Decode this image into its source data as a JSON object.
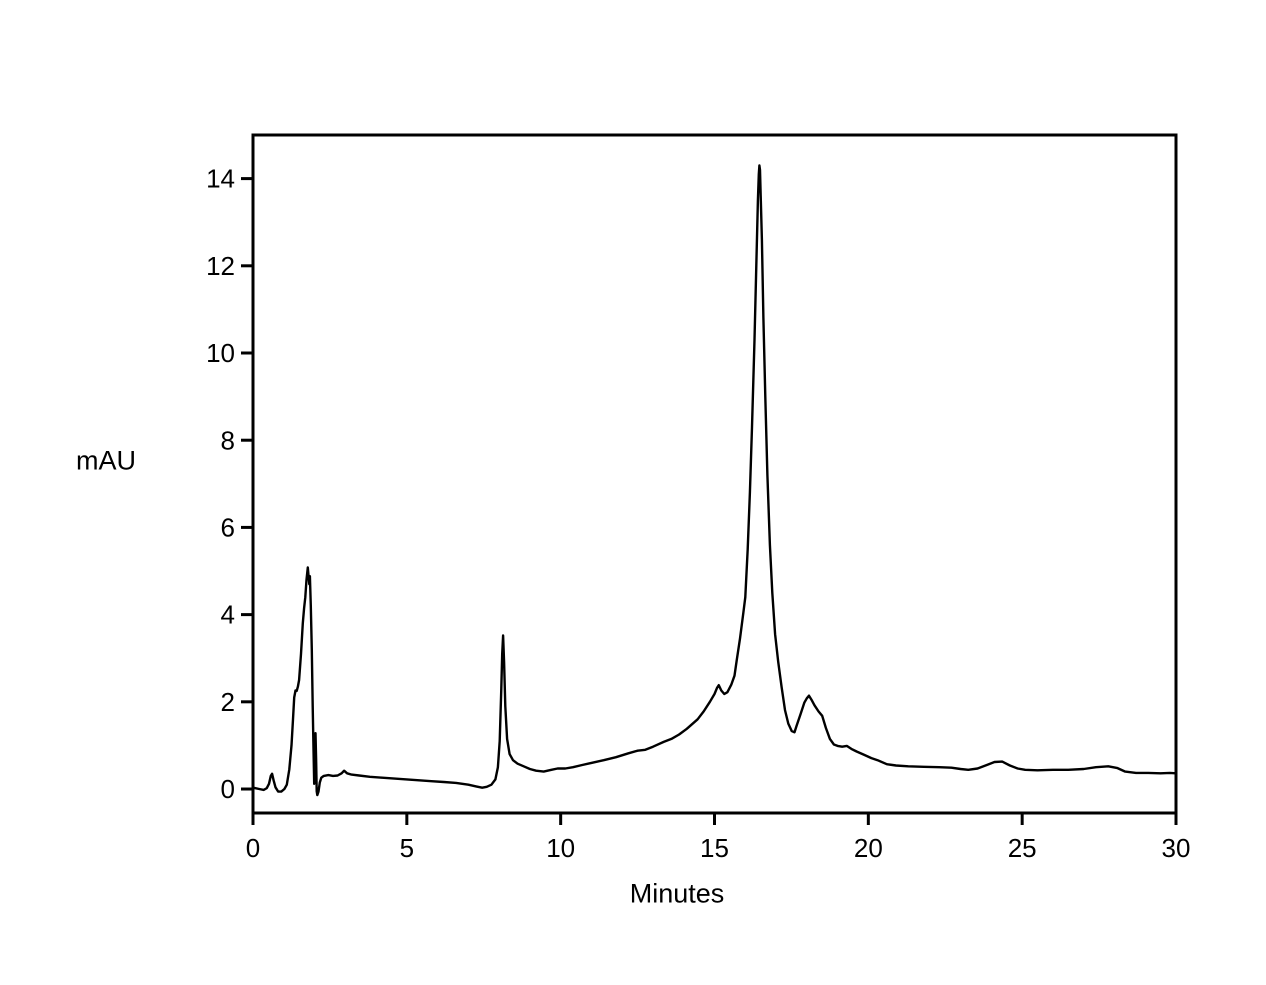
{
  "chart_data": {
    "type": "line",
    "title": "",
    "xlabel": "Minutes",
    "ylabel": "mAU",
    "xlim": [
      0,
      30
    ],
    "ylim": [
      -0.55,
      15.0
    ],
    "x_ticks": [
      0,
      5,
      10,
      15,
      20,
      25,
      30
    ],
    "y_ticks": [
      0,
      2,
      4,
      6,
      8,
      10,
      12,
      14
    ],
    "grid": false,
    "legend": "none",
    "background": "#ffffff",
    "line_color": "#000000",
    "axis_color": "#000000",
    "series": [
      {
        "name": "absorbance-trace",
        "units_x": "Minutes",
        "units_y": "mAU",
        "points": [
          [
            0.0,
            0.03
          ],
          [
            0.2,
            0.0
          ],
          [
            0.35,
            -0.02
          ],
          [
            0.45,
            0.02
          ],
          [
            0.52,
            0.12
          ],
          [
            0.58,
            0.3
          ],
          [
            0.62,
            0.35
          ],
          [
            0.67,
            0.2
          ],
          [
            0.73,
            0.04
          ],
          [
            0.82,
            -0.06
          ],
          [
            0.92,
            -0.06
          ],
          [
            1.02,
            0.0
          ],
          [
            1.1,
            0.1
          ],
          [
            1.18,
            0.45
          ],
          [
            1.25,
            1.0
          ],
          [
            1.3,
            1.6
          ],
          [
            1.34,
            2.1
          ],
          [
            1.38,
            2.26
          ],
          [
            1.42,
            2.25
          ],
          [
            1.46,
            2.35
          ],
          [
            1.5,
            2.5
          ],
          [
            1.56,
            3.1
          ],
          [
            1.62,
            3.8
          ],
          [
            1.66,
            4.15
          ],
          [
            1.7,
            4.4
          ],
          [
            1.74,
            4.8
          ],
          [
            1.78,
            5.08
          ],
          [
            1.81,
            4.85
          ],
          [
            1.83,
            4.7
          ],
          [
            1.85,
            4.88
          ],
          [
            1.88,
            4.2
          ],
          [
            1.91,
            3.2
          ],
          [
            1.94,
            1.9
          ],
          [
            1.97,
            0.8
          ],
          [
            1.99,
            0.12
          ],
          [
            2.01,
            0.25
          ],
          [
            2.03,
            1.28
          ],
          [
            2.05,
            0.7
          ],
          [
            2.07,
            -0.05
          ],
          [
            2.09,
            -0.14
          ],
          [
            2.13,
            -0.06
          ],
          [
            2.17,
            0.15
          ],
          [
            2.22,
            0.26
          ],
          [
            2.3,
            0.3
          ],
          [
            2.45,
            0.32
          ],
          [
            2.6,
            0.3
          ],
          [
            2.75,
            0.31
          ],
          [
            2.88,
            0.36
          ],
          [
            2.96,
            0.42
          ],
          [
            3.06,
            0.36
          ],
          [
            3.2,
            0.33
          ],
          [
            3.45,
            0.31
          ],
          [
            3.8,
            0.28
          ],
          [
            4.2,
            0.26
          ],
          [
            4.6,
            0.24
          ],
          [
            5.0,
            0.22
          ],
          [
            5.4,
            0.2
          ],
          [
            5.8,
            0.18
          ],
          [
            6.2,
            0.16
          ],
          [
            6.6,
            0.14
          ],
          [
            7.0,
            0.1
          ],
          [
            7.25,
            0.06
          ],
          [
            7.45,
            0.03
          ],
          [
            7.6,
            0.05
          ],
          [
            7.75,
            0.1
          ],
          [
            7.88,
            0.22
          ],
          [
            7.96,
            0.5
          ],
          [
            8.02,
            1.1
          ],
          [
            8.07,
            2.3
          ],
          [
            8.1,
            3.1
          ],
          [
            8.13,
            3.52
          ],
          [
            8.16,
            2.9
          ],
          [
            8.2,
            1.9
          ],
          [
            8.26,
            1.15
          ],
          [
            8.34,
            0.8
          ],
          [
            8.45,
            0.66
          ],
          [
            8.6,
            0.58
          ],
          [
            8.8,
            0.52
          ],
          [
            9.0,
            0.46
          ],
          [
            9.2,
            0.42
          ],
          [
            9.45,
            0.4
          ],
          [
            9.7,
            0.44
          ],
          [
            9.9,
            0.47
          ],
          [
            10.15,
            0.47
          ],
          [
            10.4,
            0.5
          ],
          [
            10.7,
            0.55
          ],
          [
            11.0,
            0.6
          ],
          [
            11.4,
            0.66
          ],
          [
            11.8,
            0.73
          ],
          [
            12.2,
            0.82
          ],
          [
            12.5,
            0.88
          ],
          [
            12.75,
            0.9
          ],
          [
            13.0,
            0.97
          ],
          [
            13.35,
            1.08
          ],
          [
            13.6,
            1.15
          ],
          [
            13.85,
            1.25
          ],
          [
            14.1,
            1.38
          ],
          [
            14.45,
            1.6
          ],
          [
            14.65,
            1.78
          ],
          [
            14.85,
            2.0
          ],
          [
            15.0,
            2.18
          ],
          [
            15.08,
            2.32
          ],
          [
            15.14,
            2.38
          ],
          [
            15.22,
            2.26
          ],
          [
            15.32,
            2.18
          ],
          [
            15.42,
            2.22
          ],
          [
            15.55,
            2.4
          ],
          [
            15.65,
            2.6
          ],
          [
            15.72,
            2.95
          ],
          [
            15.83,
            3.45
          ],
          [
            15.94,
            4.05
          ],
          [
            16.0,
            4.4
          ],
          [
            16.08,
            5.5
          ],
          [
            16.15,
            6.8
          ],
          [
            16.22,
            8.3
          ],
          [
            16.3,
            10.3
          ],
          [
            16.36,
            12.0
          ],
          [
            16.41,
            13.5
          ],
          [
            16.44,
            14.1
          ],
          [
            16.46,
            14.3
          ],
          [
            16.48,
            14.2
          ],
          [
            16.5,
            13.6
          ],
          [
            16.54,
            12.6
          ],
          [
            16.59,
            10.8
          ],
          [
            16.65,
            9.0
          ],
          [
            16.72,
            7.2
          ],
          [
            16.8,
            5.6
          ],
          [
            16.88,
            4.5
          ],
          [
            16.97,
            3.55
          ],
          [
            17.07,
            2.92
          ],
          [
            17.18,
            2.34
          ],
          [
            17.29,
            1.81
          ],
          [
            17.4,
            1.5
          ],
          [
            17.51,
            1.33
          ],
          [
            17.6,
            1.3
          ],
          [
            17.67,
            1.45
          ],
          [
            17.8,
            1.72
          ],
          [
            17.92,
            1.98
          ],
          [
            18.0,
            2.08
          ],
          [
            18.07,
            2.14
          ],
          [
            18.15,
            2.05
          ],
          [
            18.25,
            1.92
          ],
          [
            18.38,
            1.78
          ],
          [
            18.5,
            1.68
          ],
          [
            18.62,
            1.4
          ],
          [
            18.75,
            1.15
          ],
          [
            18.88,
            1.02
          ],
          [
            19.0,
            0.99
          ],
          [
            19.15,
            0.97
          ],
          [
            19.3,
            0.99
          ],
          [
            19.45,
            0.92
          ],
          [
            19.62,
            0.86
          ],
          [
            19.85,
            0.79
          ],
          [
            20.1,
            0.71
          ],
          [
            20.3,
            0.66
          ],
          [
            20.6,
            0.57
          ],
          [
            20.9,
            0.54
          ],
          [
            21.3,
            0.52
          ],
          [
            21.8,
            0.51
          ],
          [
            22.3,
            0.5
          ],
          [
            22.7,
            0.49
          ],
          [
            23.0,
            0.46
          ],
          [
            23.25,
            0.44
          ],
          [
            23.55,
            0.47
          ],
          [
            23.85,
            0.55
          ],
          [
            24.1,
            0.62
          ],
          [
            24.35,
            0.63
          ],
          [
            24.6,
            0.54
          ],
          [
            24.85,
            0.47
          ],
          [
            25.1,
            0.44
          ],
          [
            25.5,
            0.43
          ],
          [
            26.0,
            0.44
          ],
          [
            26.5,
            0.44
          ],
          [
            27.0,
            0.46
          ],
          [
            27.4,
            0.5
          ],
          [
            27.8,
            0.52
          ],
          [
            28.1,
            0.48
          ],
          [
            28.35,
            0.4
          ],
          [
            28.7,
            0.37
          ],
          [
            29.1,
            0.37
          ],
          [
            29.5,
            0.36
          ],
          [
            29.8,
            0.37
          ],
          [
            30.0,
            0.36
          ]
        ]
      }
    ],
    "peaks_visible": [
      {
        "time_min": 1.78,
        "height_mau": 5.08
      },
      {
        "time_min": 2.03,
        "height_mau": 1.28
      },
      {
        "time_min": 8.13,
        "height_mau": 3.52
      },
      {
        "time_min": 15.14,
        "height_mau": 2.38
      },
      {
        "time_min": 16.46,
        "height_mau": 14.3
      },
      {
        "time_min": 18.07,
        "height_mau": 2.14
      }
    ]
  }
}
